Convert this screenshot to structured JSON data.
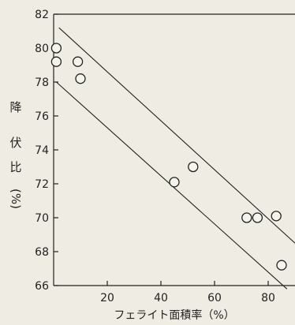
{
  "chart_data": {
    "type": "scatter",
    "xlabel": "フェライト面積率（%）",
    "ylabel_chars": [
      "降",
      "伏",
      "比",
      "(%)"
    ],
    "xlim": [
      0,
      90
    ],
    "ylim": [
      66,
      82
    ],
    "x_ticks": [
      20,
      40,
      60,
      80
    ],
    "y_ticks": [
      66,
      68,
      70,
      72,
      74,
      76,
      78,
      80,
      82
    ],
    "grid": false,
    "points": [
      {
        "x": 1,
        "y": 80.0
      },
      {
        "x": 1,
        "y": 79.2
      },
      {
        "x": 9,
        "y": 79.2
      },
      {
        "x": 10,
        "y": 78.2
      },
      {
        "x": 45,
        "y": 72.1
      },
      {
        "x": 52,
        "y": 73.0
      },
      {
        "x": 72,
        "y": 70.0
      },
      {
        "x": 76,
        "y": 70.0
      },
      {
        "x": 83,
        "y": 70.1
      },
      {
        "x": 85,
        "y": 67.2
      }
    ],
    "band_lines": [
      {
        "x": [
          2,
          90
        ],
        "y": [
          81.2,
          68.5
        ]
      },
      {
        "x": [
          1,
          87
        ],
        "y": [
          78.0,
          65.8
        ]
      }
    ]
  }
}
